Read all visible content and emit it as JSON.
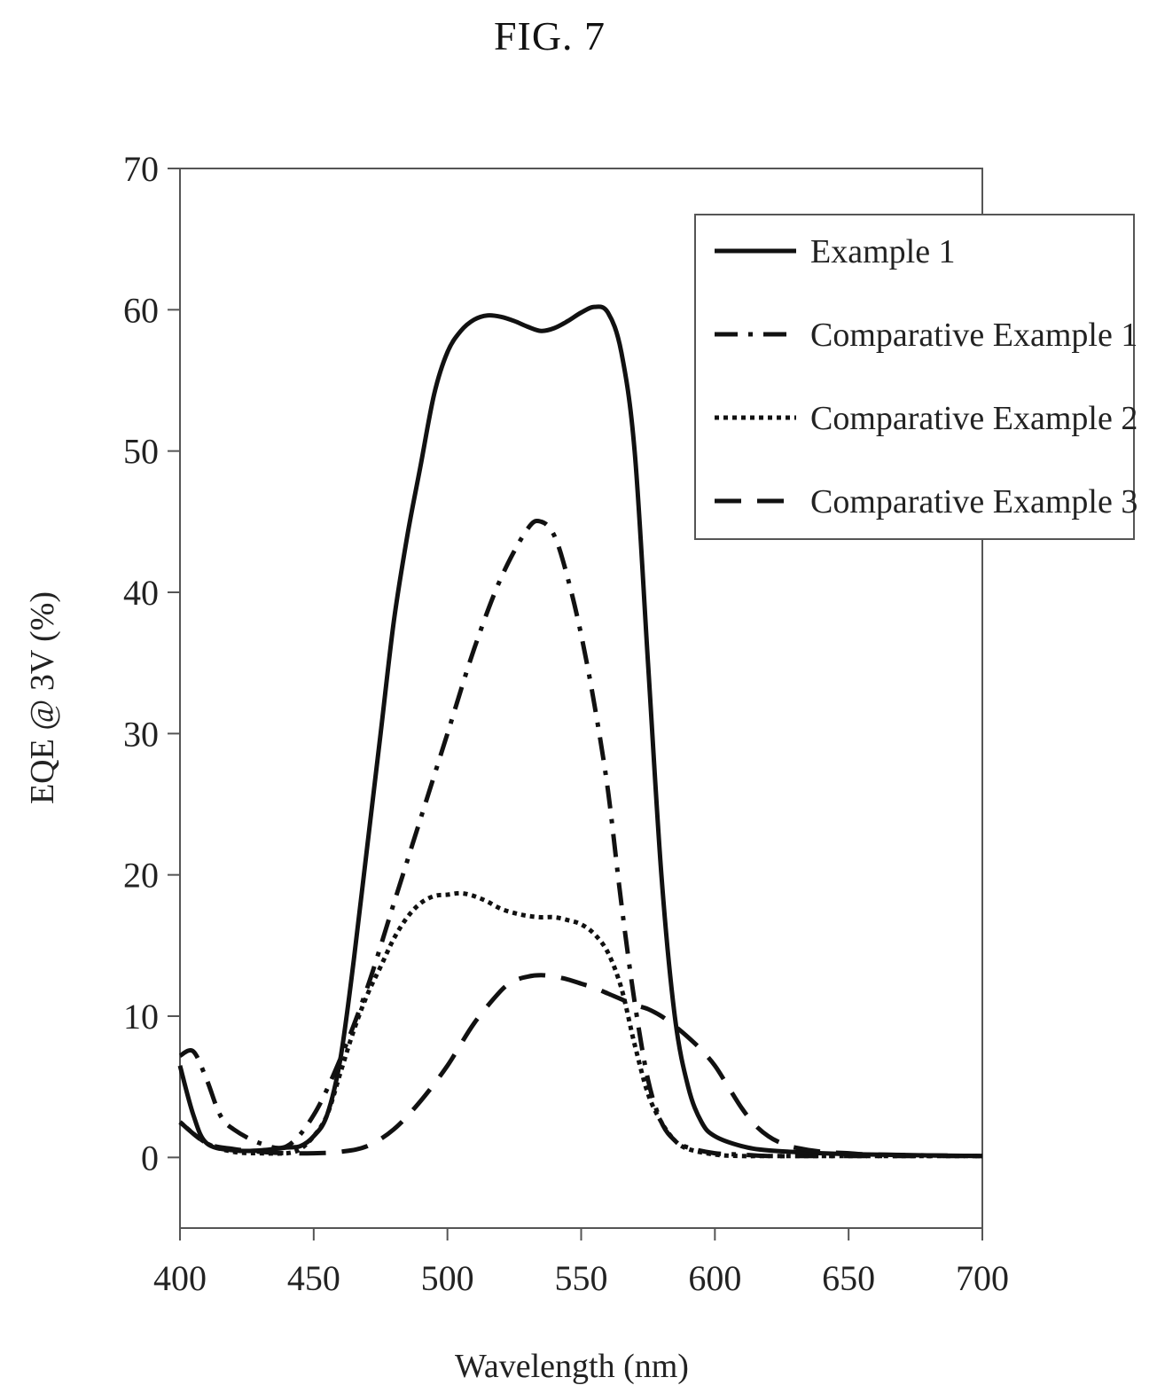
{
  "figure_title": "FIG. 7",
  "chart_data": {
    "type": "line",
    "title": "",
    "xlabel": "Wavelength (nm)",
    "ylabel": "EQE @ 3V (%)",
    "xlim": [
      400,
      700
    ],
    "ylim": [
      -5,
      70
    ],
    "xticks": [
      400,
      450,
      500,
      550,
      600,
      650,
      700
    ],
    "yticks": [
      0,
      10,
      20,
      30,
      40,
      50,
      60,
      70
    ],
    "grid": false,
    "legend_position": "top-right",
    "series": [
      {
        "name": "Example 1",
        "style": "solid",
        "color": "#111111",
        "x": [
          400,
          405,
          410,
          420,
          430,
          440,
          445,
          450,
          455,
          460,
          465,
          470,
          475,
          480,
          485,
          490,
          495,
          500,
          505,
          510,
          515,
          520,
          525,
          530,
          535,
          540,
          545,
          550,
          555,
          560,
          565,
          570,
          575,
          580,
          585,
          590,
          595,
          600,
          610,
          620,
          640,
          660,
          700
        ],
        "y": [
          6.5,
          3.0,
          1.0,
          0.5,
          0.5,
          0.7,
          0.8,
          1.5,
          3.0,
          7.0,
          14.0,
          22.0,
          30.0,
          38.0,
          44.0,
          49.0,
          54.0,
          57.0,
          58.5,
          59.3,
          59.6,
          59.5,
          59.2,
          58.8,
          58.5,
          58.7,
          59.2,
          59.8,
          60.2,
          59.8,
          57.0,
          50.0,
          35.0,
          20.0,
          10.0,
          5.0,
          2.5,
          1.5,
          0.8,
          0.5,
          0.3,
          0.2,
          0.1
        ]
      },
      {
        "name": "Comparative Example 1",
        "style": "dash-dot",
        "color": "#111111",
        "x": [
          400,
          405,
          410,
          415,
          420,
          430,
          440,
          450,
          460,
          470,
          480,
          490,
          500,
          510,
          520,
          530,
          535,
          540,
          545,
          550,
          555,
          560,
          565,
          570,
          575,
          580,
          585,
          590,
          600,
          610,
          620,
          640,
          660,
          700
        ],
        "y": [
          7.2,
          7.5,
          5.5,
          3.0,
          2.0,
          1.0,
          0.8,
          3.0,
          7.0,
          12.0,
          18.0,
          24.0,
          30.0,
          36.0,
          41.0,
          44.5,
          45.0,
          44.0,
          41.0,
          37.0,
          32.0,
          26.0,
          18.0,
          11.0,
          5.5,
          2.5,
          1.2,
          0.7,
          0.3,
          0.2,
          0.1,
          0.1,
          0.1,
          0.1
        ]
      },
      {
        "name": "Comparative Example 2",
        "style": "dotted",
        "color": "#111111",
        "x": [
          400,
          410,
          420,
          430,
          440,
          445,
          450,
          455,
          460,
          465,
          470,
          475,
          480,
          485,
          490,
          495,
          500,
          505,
          510,
          515,
          520,
          525,
          530,
          535,
          540,
          545,
          550,
          555,
          560,
          565,
          570,
          575,
          580,
          585,
          590,
          600,
          610,
          620,
          640,
          660,
          700
        ],
        "y": [
          2.5,
          1.0,
          0.4,
          0.3,
          0.3,
          0.6,
          1.5,
          3.0,
          6.0,
          9.0,
          11.5,
          13.5,
          15.5,
          17.0,
          18.0,
          18.5,
          18.6,
          18.7,
          18.5,
          18.1,
          17.6,
          17.3,
          17.1,
          17.0,
          17.0,
          16.8,
          16.5,
          15.8,
          14.5,
          12.0,
          8.0,
          4.5,
          2.5,
          1.2,
          0.6,
          0.2,
          0.1,
          0.1,
          0.1,
          0.1,
          0.1
        ]
      },
      {
        "name": "Comparative Example 3",
        "style": "dashed",
        "color": "#111111",
        "x": [
          400,
          410,
          420,
          430,
          440,
          450,
          460,
          470,
          480,
          490,
          500,
          510,
          520,
          525,
          530,
          535,
          540,
          545,
          550,
          555,
          560,
          565,
          570,
          575,
          580,
          585,
          590,
          595,
          600,
          605,
          610,
          615,
          620,
          625,
          630,
          640,
          650,
          660,
          700
        ],
        "y": [
          2.5,
          1.0,
          0.6,
          0.4,
          0.3,
          0.3,
          0.4,
          0.8,
          2.0,
          4.0,
          6.5,
          9.5,
          11.8,
          12.5,
          12.8,
          12.9,
          12.8,
          12.6,
          12.3,
          12.0,
          11.6,
          11.2,
          10.8,
          10.5,
          10.0,
          9.3,
          8.5,
          7.6,
          6.5,
          5.0,
          3.5,
          2.3,
          1.5,
          1.0,
          0.7,
          0.4,
          0.3,
          0.2,
          0.1
        ]
      }
    ]
  }
}
